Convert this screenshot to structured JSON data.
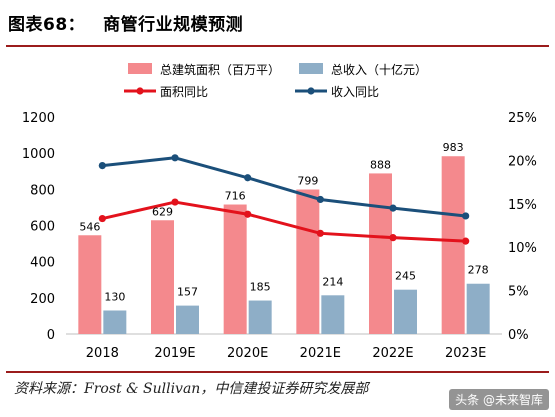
{
  "header": {
    "figure_number": "图表68：",
    "title": "商管行业规模预测"
  },
  "footer": {
    "source": "资料来源：Frost & Sullivan，中信建投证券研究发展部",
    "watermark": "头条 @未来智库"
  },
  "colors": {
    "area_bar": "#f4898d",
    "revenue_bar": "#8eaec7",
    "area_yoy_line": "#e3121c",
    "revenue_yoy_line": "#1b4f7a",
    "rule": "#9b1c1c"
  },
  "chart_data": {
    "type": "bar",
    "title": "",
    "categories": [
      "2018",
      "2019E",
      "2020E",
      "2021E",
      "2022E",
      "2023E"
    ],
    "series": [
      {
        "name": "总建筑面积（百万平）",
        "kind": "bar",
        "axis": "left",
        "values": [
          546,
          629,
          716,
          799,
          888,
          983
        ]
      },
      {
        "name": "总收入（十亿元）",
        "kind": "bar",
        "axis": "left",
        "values": [
          130,
          157,
          185,
          214,
          245,
          278
        ]
      },
      {
        "name": "面积同比",
        "kind": "line",
        "axis": "right",
        "values": [
          13.3,
          15.2,
          13.8,
          11.6,
          11.1,
          10.7
        ]
      },
      {
        "name": "收入同比",
        "kind": "line",
        "axis": "right",
        "values": [
          19.4,
          20.3,
          18.0,
          15.5,
          14.5,
          13.6
        ]
      }
    ],
    "y_left": {
      "min": 0,
      "max": 1200,
      "ticks": [
        "0",
        "200",
        "400",
        "600",
        "800",
        "1000",
        "1200"
      ]
    },
    "y_right": {
      "min": 0,
      "max": 25,
      "ticks": [
        "0%",
        "5%",
        "10%",
        "15%",
        "20%",
        "25%"
      ]
    },
    "legend_position": "top",
    "grid": false
  }
}
